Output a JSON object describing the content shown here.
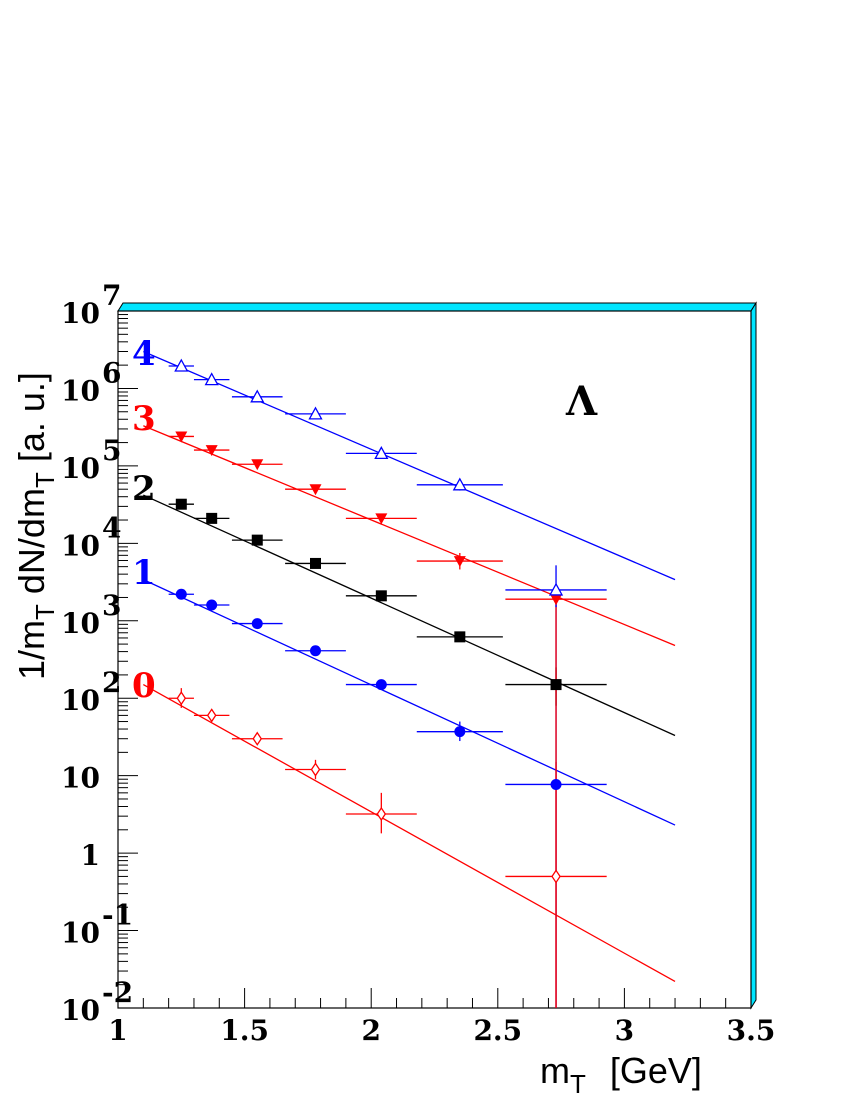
{
  "chart_data": {
    "type": "scatter",
    "title": "",
    "particle_label": "Λ",
    "xlabel_main": "m",
    "xlabel_sub": "T",
    "xlabel_unit": "[GeV]",
    "ylabel_parts": [
      "1/m",
      "T",
      " dN/dm",
      "T",
      "  [a. u.]"
    ],
    "x_scale": "linear",
    "y_scale": "log",
    "xlim": [
      1,
      3.5
    ],
    "ylim": [
      0.01,
      10000000
    ],
    "x_ticks": [
      {
        "v": 1,
        "label": "1"
      },
      {
        "v": 1.5,
        "label": "1.5"
      },
      {
        "v": 2,
        "label": "2"
      },
      {
        "v": 2.5,
        "label": "2.5"
      },
      {
        "v": 3,
        "label": "3"
      },
      {
        "v": 3.5,
        "label": "3.5"
      }
    ],
    "y_ticks": [
      {
        "v": 0.01,
        "base": "10",
        "exp": "-2"
      },
      {
        "v": 0.1,
        "base": "10",
        "exp": "-1"
      },
      {
        "v": 1,
        "base": "1",
        "exp": ""
      },
      {
        "v": 10,
        "base": "10",
        "exp": ""
      },
      {
        "v": 100,
        "base": "10",
        "exp": "2"
      },
      {
        "v": 1000,
        "base": "10",
        "exp": "3"
      },
      {
        "v": 10000,
        "base": "10",
        "exp": "4"
      },
      {
        "v": 100000,
        "base": "10",
        "exp": "5"
      },
      {
        "v": 1000000,
        "base": "10",
        "exp": "6"
      },
      {
        "v": 10000000,
        "base": "10",
        "exp": "7"
      }
    ],
    "series": [
      {
        "name": "0",
        "color": "#ff0000",
        "marker": "open-diamond",
        "fit": [
          [
            1.1,
            150
          ],
          [
            3.2,
            0.022
          ]
        ],
        "points": [
          {
            "x": 1.25,
            "y": 100,
            "xerr": [
              0.05,
              0.05
            ],
            "yerr": [
              75,
              135
            ]
          },
          {
            "x": 1.37,
            "y": 60,
            "xerr": [
              0.07,
              0.07
            ],
            "yerr": [
              50,
              72
            ]
          },
          {
            "x": 1.55,
            "y": 30,
            "xerr": [
              0.1,
              0.1
            ],
            "yerr": [
              26,
              34
            ]
          },
          {
            "x": 1.78,
            "y": 12,
            "xerr": [
              0.12,
              0.12
            ],
            "yerr": [
              9,
              16
            ]
          },
          {
            "x": 2.04,
            "y": 3.2,
            "xerr": [
              0.14,
              0.14
            ],
            "yerr": [
              1.8,
              6
            ]
          },
          {
            "x": 2.73,
            "y": 0.5,
            "xerr": [
              0.2,
              0.2
            ],
            "yerr": [
              0.01,
              15
            ]
          }
        ]
      },
      {
        "name": "1",
        "color": "#0000ff",
        "marker": "filled-circle",
        "fit": [
          [
            1.1,
            3400
          ],
          [
            3.2,
            2.3
          ]
        ],
        "points": [
          {
            "x": 1.25,
            "y": 2200,
            "xerr": [
              0.05,
              0.05
            ],
            "yerr": [
              1900,
              2500
            ]
          },
          {
            "x": 1.37,
            "y": 1600,
            "xerr": [
              0.07,
              0.07
            ],
            "yerr": [
              1450,
              1750
            ]
          },
          {
            "x": 1.55,
            "y": 920,
            "xerr": [
              0.1,
              0.1
            ],
            "yerr": [
              840,
              1000
            ]
          },
          {
            "x": 1.78,
            "y": 410,
            "xerr": [
              0.12,
              0.12
            ],
            "yerr": [
              370,
              450
            ]
          },
          {
            "x": 2.04,
            "y": 150,
            "xerr": [
              0.14,
              0.14
            ],
            "yerr": [
              130,
              170
            ]
          },
          {
            "x": 2.35,
            "y": 37,
            "xerr": [
              0.17,
              0.17
            ],
            "yerr": [
              28,
              50
            ]
          },
          {
            "x": 2.73,
            "y": 7.7,
            "xerr": [
              0.2,
              0.2
            ],
            "yerr": [
              0.01,
              2600
            ]
          }
        ]
      },
      {
        "name": "2",
        "color": "#000000",
        "marker": "filled-square",
        "fit": [
          [
            1.1,
            42000
          ],
          [
            3.2,
            33
          ]
        ],
        "points": [
          {
            "x": 1.25,
            "y": 32000,
            "xerr": [
              0.05,
              0.05
            ],
            "yerr": [
              29000,
              35000
            ]
          },
          {
            "x": 1.37,
            "y": 21000,
            "xerr": [
              0.07,
              0.07
            ],
            "yerr": [
              19000,
              23000
            ]
          },
          {
            "x": 1.55,
            "y": 11000,
            "xerr": [
              0.1,
              0.1
            ],
            "yerr": [
              10000,
              12000
            ]
          },
          {
            "x": 1.78,
            "y": 5500,
            "xerr": [
              0.12,
              0.12
            ],
            "yerr": [
              5000,
              6000
            ]
          },
          {
            "x": 2.04,
            "y": 2100,
            "xerr": [
              0.14,
              0.14
            ],
            "yerr": [
              1900,
              2300
            ]
          },
          {
            "x": 2.35,
            "y": 620,
            "xerr": [
              0.17,
              0.17
            ],
            "yerr": [
              540,
              720
            ]
          },
          {
            "x": 2.73,
            "y": 150,
            "xerr": [
              0.2,
              0.2
            ],
            "yerr": [
              80,
              250
            ]
          }
        ]
      },
      {
        "name": "3",
        "color": "#ff0000",
        "marker": "filled-down-triangle",
        "fit": [
          [
            1.1,
            330000
          ],
          [
            3.2,
            480
          ]
        ],
        "points": [
          {
            "x": 1.25,
            "y": 240000,
            "xerr": [
              0.05,
              0.05
            ],
            "yerr": [
              215000,
              265000
            ]
          },
          {
            "x": 1.37,
            "y": 160000,
            "xerr": [
              0.07,
              0.07
            ],
            "yerr": [
              145000,
              175000
            ]
          },
          {
            "x": 1.55,
            "y": 105000,
            "xerr": [
              0.1,
              0.1
            ],
            "yerr": [
              95000,
              115000
            ]
          },
          {
            "x": 1.78,
            "y": 50000,
            "xerr": [
              0.12,
              0.12
            ],
            "yerr": [
              45000,
              55000
            ]
          },
          {
            "x": 2.04,
            "y": 21000,
            "xerr": [
              0.14,
              0.14
            ],
            "yerr": [
              19000,
              23000
            ]
          },
          {
            "x": 2.35,
            "y": 5900,
            "xerr": [
              0.17,
              0.17
            ],
            "yerr": [
              4600,
              7500
            ]
          },
          {
            "x": 2.73,
            "y": 1900,
            "xerr": [
              0.2,
              0.2
            ],
            "yerr": [
              0.01,
              2600
            ]
          }
        ]
      },
      {
        "name": "4",
        "color": "#0000ff",
        "marker": "open-up-triangle",
        "fit": [
          [
            1.1,
            3000000
          ],
          [
            3.2,
            3400
          ]
        ],
        "points": [
          {
            "x": 1.25,
            "y": 1950000,
            "xerr": [
              0.05,
              0.05
            ],
            "yerr": [
              1750000,
              2150000
            ]
          },
          {
            "x": 1.37,
            "y": 1300000,
            "xerr": [
              0.07,
              0.07
            ],
            "yerr": [
              1170000,
              1430000
            ]
          },
          {
            "x": 1.55,
            "y": 780000,
            "xerr": [
              0.1,
              0.1
            ],
            "yerr": [
              700000,
              860000
            ]
          },
          {
            "x": 1.78,
            "y": 470000,
            "xerr": [
              0.12,
              0.12
            ],
            "yerr": [
              420000,
              520000
            ]
          },
          {
            "x": 2.04,
            "y": 145000,
            "xerr": [
              0.14,
              0.14
            ],
            "yerr": [
              130000,
              160000
            ]
          },
          {
            "x": 2.35,
            "y": 57000,
            "xerr": [
              0.17,
              0.17
            ],
            "yerr": [
              48000,
              67000
            ]
          },
          {
            "x": 2.73,
            "y": 2500,
            "xerr": [
              0.2,
              0.2
            ],
            "yerr": [
              1500,
              5200
            ]
          }
        ]
      }
    ]
  }
}
